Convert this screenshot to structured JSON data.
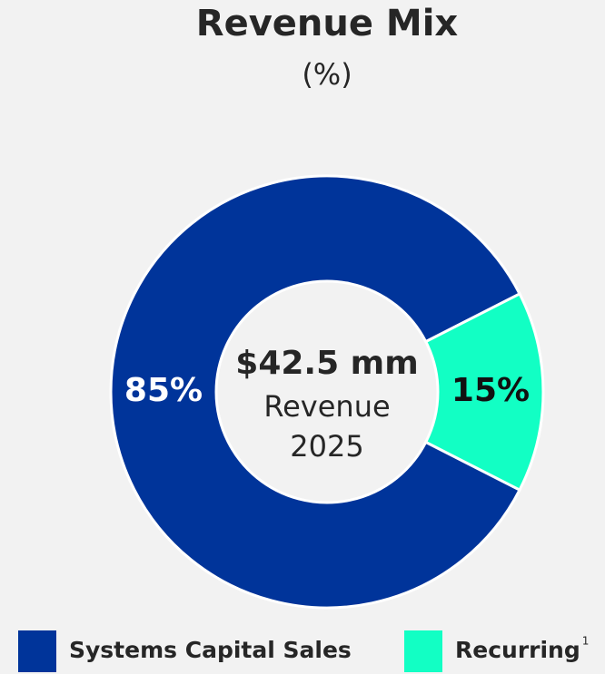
{
  "chart_data": {
    "type": "donut",
    "title": "Revenue Mix",
    "subtitle": "(%)",
    "categories": [
      "Systems Capital Sales",
      "Recurring"
    ],
    "values": [
      85,
      15
    ],
    "value_labels": [
      "85%",
      "15%"
    ],
    "colors": [
      "#00349a",
      "#12ffc4"
    ],
    "label_colors": [
      "#ffffff",
      "#111111"
    ],
    "center_text": [
      "$42.5 mm",
      "Revenue",
      "2025"
    ],
    "legend_footnote": "1"
  }
}
